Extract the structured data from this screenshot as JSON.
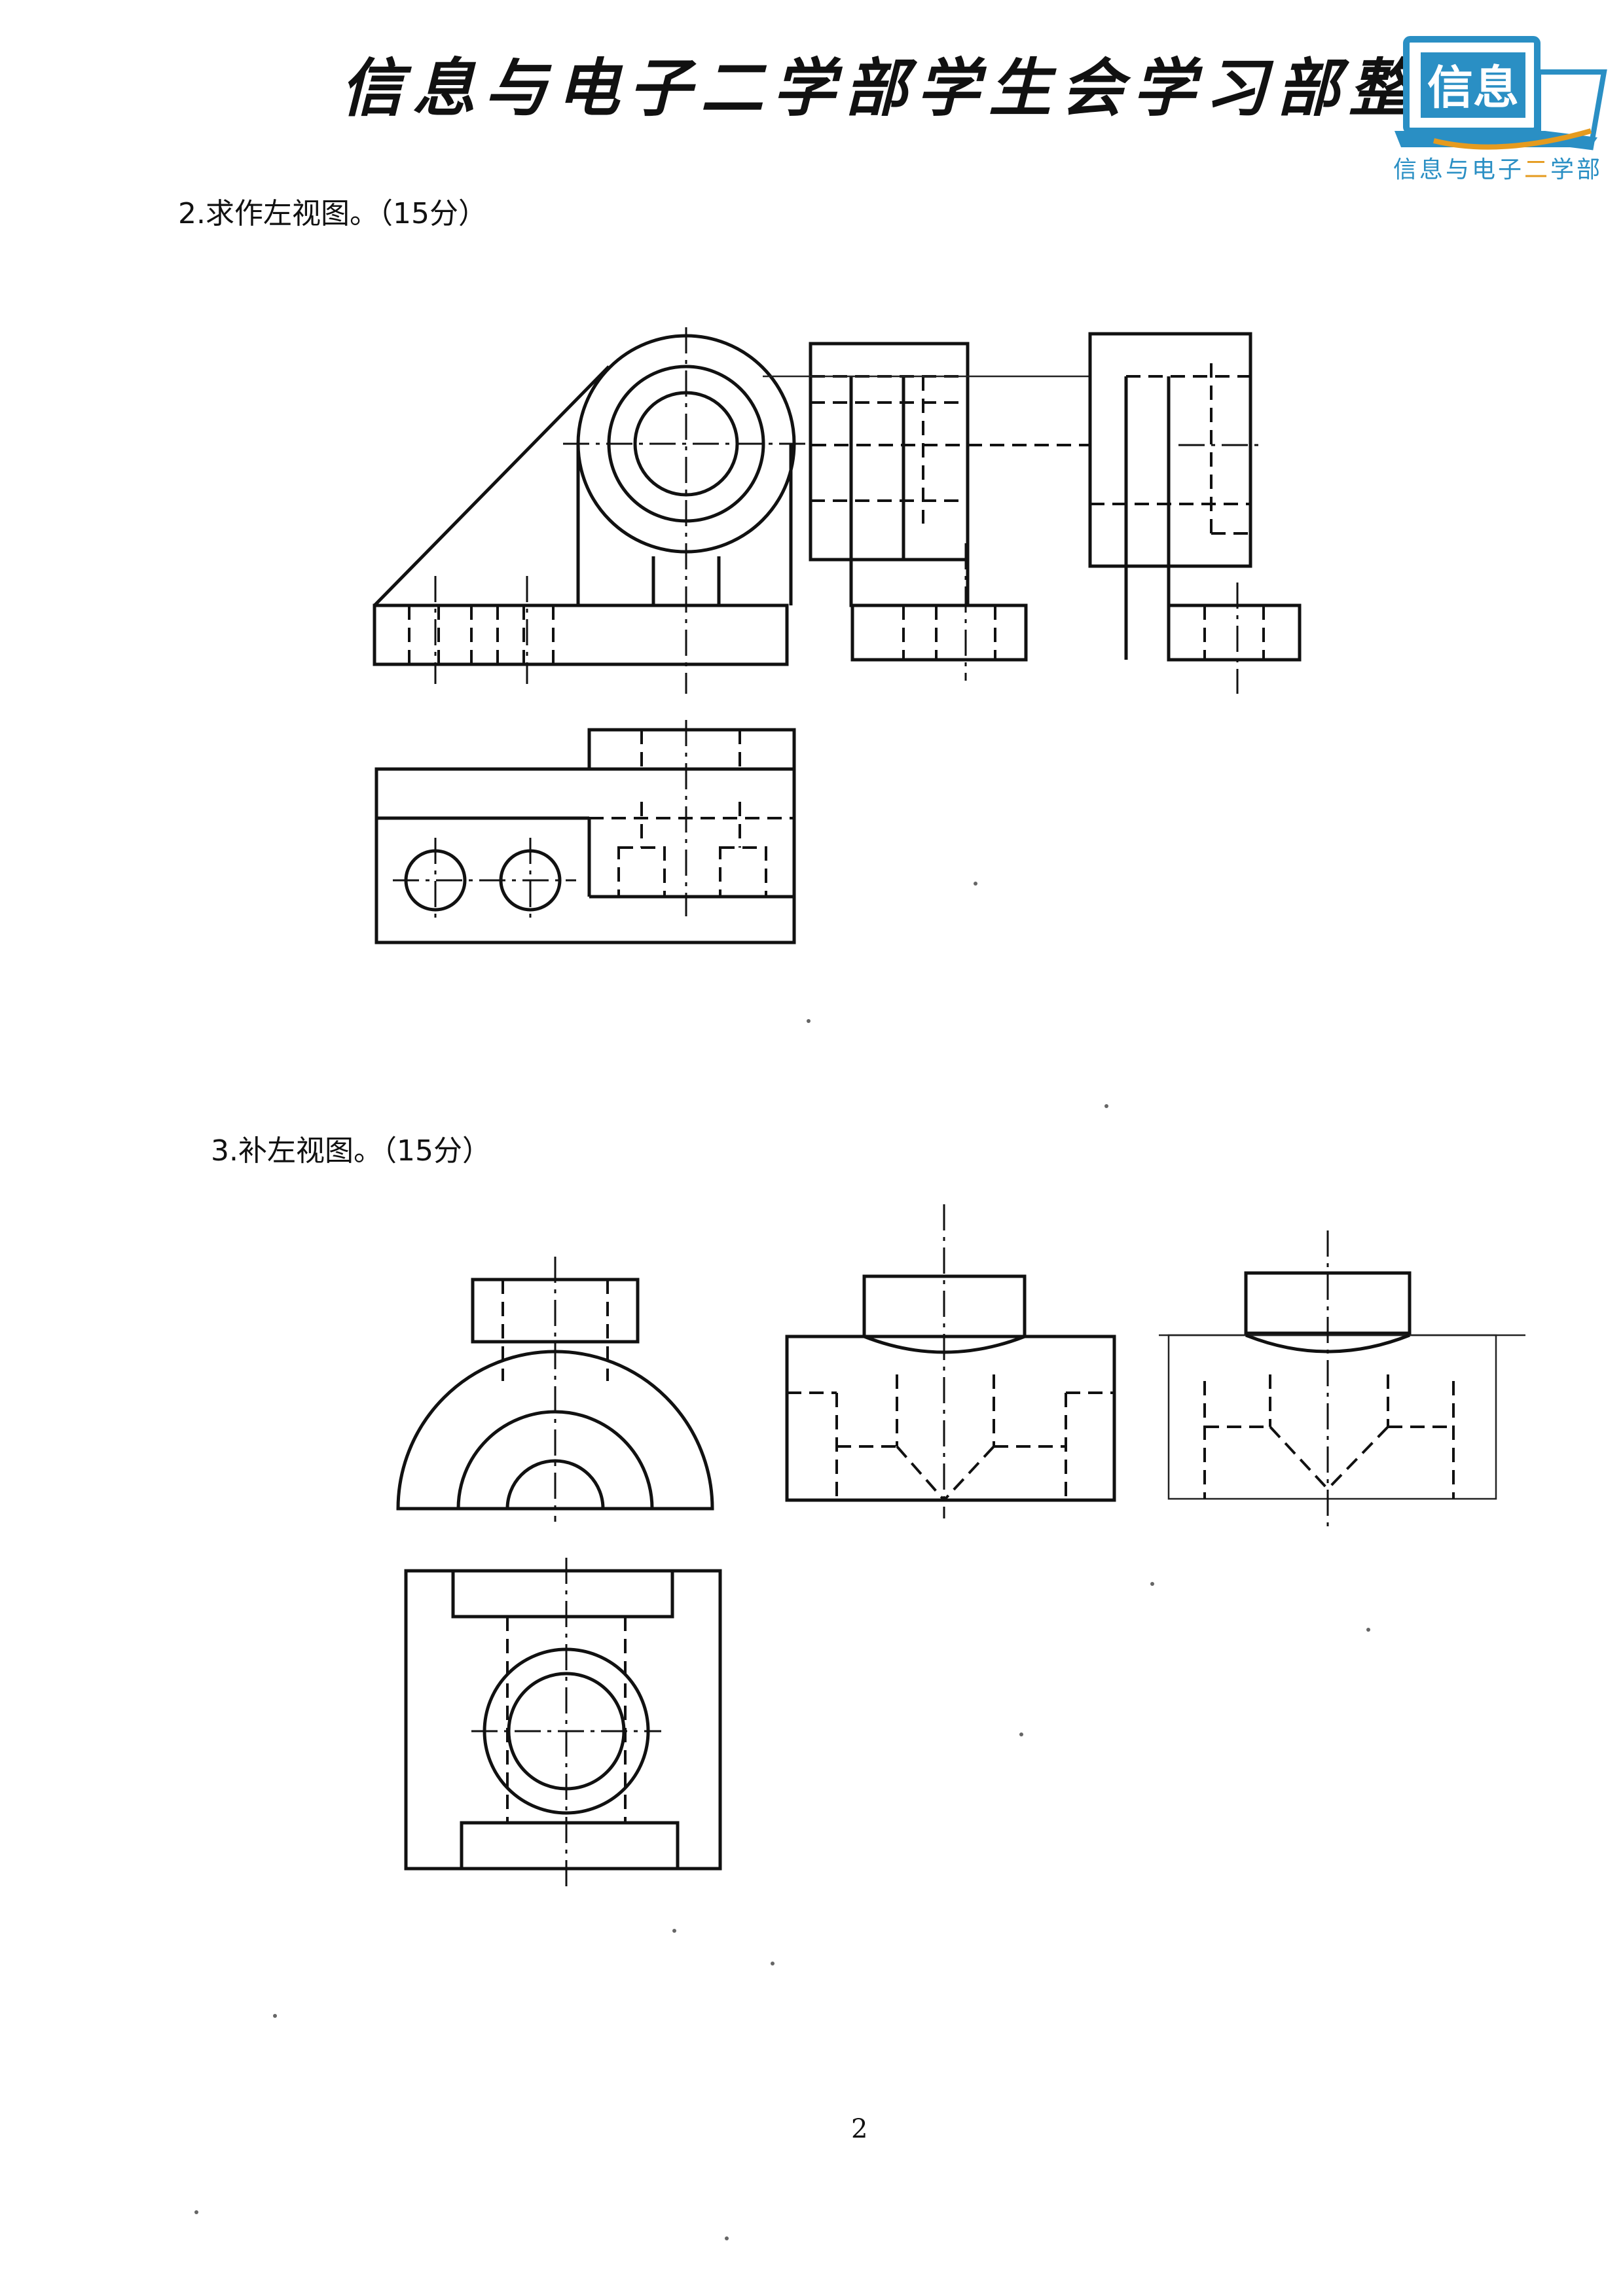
{
  "header": {
    "title": "信息与电子二学部学生会学习部整理",
    "logo": {
      "badge_text": "信息",
      "caption_before": "信息与电子",
      "caption_highlight": "二",
      "caption_after": "学部",
      "colors": {
        "primary": "#2a8fc4",
        "accent": "#e59b1f"
      }
    }
  },
  "questions": [
    {
      "label": "2.求作左视图。（15分）"
    },
    {
      "label": "3.补左视图。（15分）"
    }
  ],
  "footer": {
    "page_number": "2"
  }
}
